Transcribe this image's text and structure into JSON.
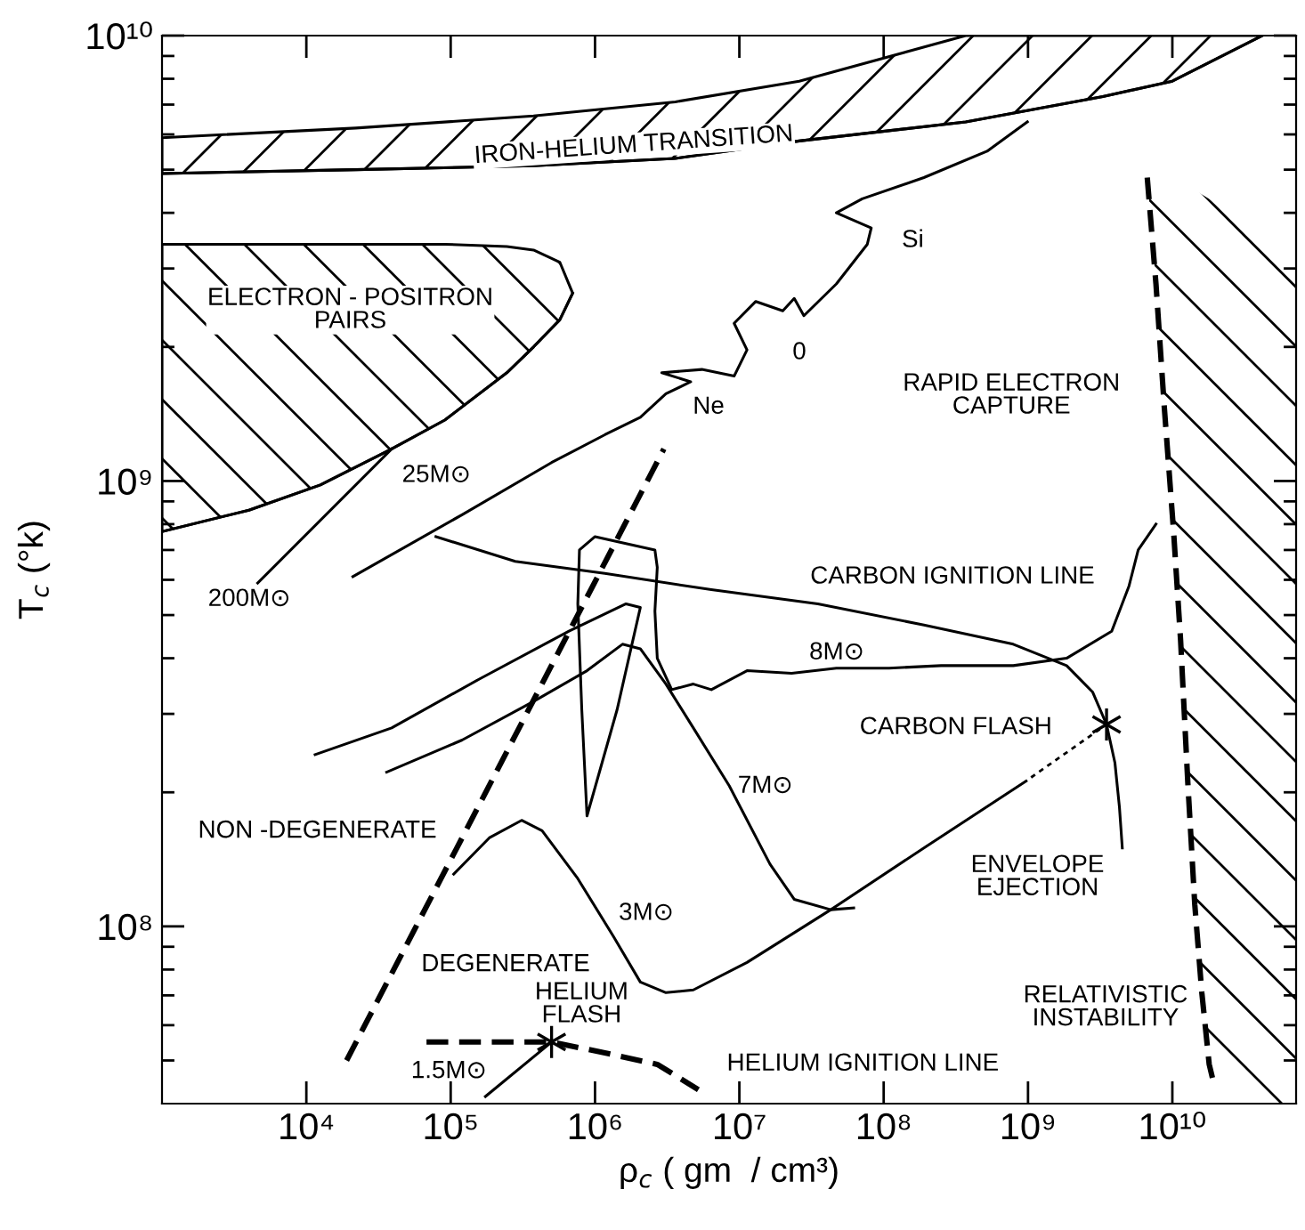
{
  "chart_data": {
    "type": "line",
    "log": "xy",
    "xlabel": "ρ$_{c}$ ( gm  / cm³)",
    "ylabel": "T$_{c}$ (°k)",
    "xlim": [
      1000,
      72000000000.0
    ],
    "ylim": [
      40000000.0,
      10000000000.0
    ],
    "xticks": [
      {
        "value": 10000.0,
        "label": "10⁴"
      },
      {
        "value": 100000.0,
        "label": "10⁵"
      },
      {
        "value": 1000000.0,
        "label": "10⁶"
      },
      {
        "value": 10000000.0,
        "label": "10⁷"
      },
      {
        "value": 100000000.0,
        "label": "10⁸"
      },
      {
        "value": 1000000000.0,
        "label": "10⁹"
      },
      {
        "value": 10000000000.0,
        "label": "10¹⁰"
      }
    ],
    "yticks": [
      {
        "value": 50000000.0,
        "label": null
      },
      {
        "value": 60000000.0,
        "label": null
      },
      {
        "value": 70000000.0,
        "label": null
      },
      {
        "value": 80000000.0,
        "label": null
      },
      {
        "value": 90000000.0,
        "label": null
      },
      {
        "value": 100000000.0,
        "label": "10⁸"
      },
      {
        "value": 200000000.0,
        "label": null
      },
      {
        "value": 300000000.0,
        "label": null
      },
      {
        "value": 400000000.0,
        "label": null
      },
      {
        "value": 500000000.0,
        "label": null
      },
      {
        "value": 600000000.0,
        "label": null
      },
      {
        "value": 700000000.0,
        "label": null
      },
      {
        "value": 800000000.0,
        "label": null
      },
      {
        "value": 900000000.0,
        "label": null
      },
      {
        "value": 1000000000.0,
        "label": "10⁹"
      },
      {
        "value": 2000000000.0,
        "label": null
      },
      {
        "value": 3000000000.0,
        "label": null
      },
      {
        "value": 4000000000.0,
        "label": null
      },
      {
        "value": 5000000000.0,
        "label": null
      },
      {
        "value": 6000000000.0,
        "label": null
      },
      {
        "value": 7000000000.0,
        "label": null
      },
      {
        "value": 8000000000.0,
        "label": null
      },
      {
        "value": 9000000000.0,
        "label": null
      },
      {
        "value": 10000000000.0,
        "label": "10¹⁰"
      }
    ],
    "series": [
      {
        "color": "#000000",
        "line_style": "solid",
        "x": [
          1000,
          22000.0,
          375000.0,
          3600000.0,
          26000000.0,
          370000000.0,
          3300000000.0,
          10000000000.0,
          42000000000.0
        ],
        "values": [
          4900000000.0,
          5000000000.0,
          5100000000.0,
          5300000000.0,
          5800000000.0,
          6400000000.0,
          7300000000.0,
          7900000000.0,
          10000000000.0
        ],
        "lower": [
          4900000000.0,
          5000000000.0,
          5100000000.0,
          5300000000.0,
          5800000000.0,
          6400000000.0,
          7300000000.0,
          7900000000.0,
          10000000000.0
        ],
        "upper": [
          5900000000.0,
          6200000000.0,
          6600000000.0,
          7100000000.0,
          7900000000.0,
          10000000000.0,
          10000000000.0,
          10000000000.0,
          10000000000.0
        ]
      },
      {
        "color": "#000000",
        "line_style": "solid",
        "x": [
          1000,
          4000.0,
          12500.0,
          39000.0,
          91000.0,
          245000.0,
          375000.0,
          570000.0,
          700000.0
        ],
        "values": [
          770000000.0,
          860000000.0,
          980000000.0,
          1180000000.0,
          1370000000.0,
          1750000000.0,
          2000000000.0,
          2300000000.0,
          2640000000.0
        ],
        "lower": [
          770000000.0,
          860000000.0,
          980000000.0,
          1180000000.0,
          1370000000.0,
          1750000000.0,
          2000000000.0,
          2300000000.0,
          2640000000.0
        ],
        "upper": [
          3400000000.0,
          3400000000.0,
          3400000000.0,
          3400000000.0,
          3400000000.0,
          3360000000.0,
          3300000000.0,
          3100000000.0,
          2640000000.0
        ]
      },
      {
        "color": "#000000",
        "line_style": "dashed",
        "x": [
          6700000000.0,
          7700000000.0,
          8800000000.0,
          10200000000.0,
          11400000000.0,
          12800000000.0,
          14300000000.0,
          16000000000.0,
          18000000000.0,
          19500000000.0,
          32000000000.0,
          72000000000.0
        ],
        "values": [
          4800000000.0,
          2770000000.0,
          1460000000.0,
          770000000.0,
          440000000.0,
          210000000.0,
          112000000.0,
          71000000.0,
          49000000.0,
          44000000.0,
          null,
          null
        ],
        "lower": [
          4800000000.0,
          2770000000.0,
          1460000000.0,
          770000000.0,
          440000000.0,
          210000000.0,
          112000000.0,
          71000000.0,
          49000000.0,
          44000000.0,
          40000000.0,
          40000000.0
        ],
        "upper": [
          5400000000.0,
          5200000000.0,
          5000000000.0,
          4900000000.0,
          4750000000.0,
          4600000000.0,
          4500000000.0,
          4400000000.0,
          4300000000.0,
          4200000000.0,
          3750000000.0,
          3100000000.0
        ]
      },
      {
        "color": "#000000",
        "line_style": "dashed",
        "x": [
          19000.0,
          3000000.0
        ],
        "values": [
          50000000.0,
          1180000000.0
        ]
      },
      {
        "color": "#000000",
        "line_style": "dashed",
        "x": [
          68000.0,
          500000.0,
          1170000.0,
          2700000.0,
          5200000.0
        ],
        "values": [
          55000000.0,
          55000000.0,
          52000000.0,
          49000000.0,
          43000000.0
        ]
      },
      {
        "color": "#000000",
        "x": [
          4600.0,
          39000.0
        ],
        "values": [
          590000000.0,
          1180000000.0
        ]
      },
      {
        "color": "#000000",
        "x": [
          21000.0,
          120000.0,
          500000.0,
          1170000.0,
          2060000.0,
          3100000.0,
          4600000.0,
          2900000.0,
          5500000.0,
          9200000.0,
          11300000.0,
          9200000.0,
          13000000.0,
          20000000.0,
          24000000.0,
          28000000.0,
          47000000.0,
          77000000.0,
          82000000.0,
          47000000.0,
          71000000.0,
          190000000.0,
          520000000.0,
          990000000.0
        ],
        "values": [
          610000000.0,
          840000000.0,
          1100000000.0,
          1270000000.0,
          1390000000.0,
          1570000000.0,
          1670000000.0,
          1750000000.0,
          1780000000.0,
          1720000000.0,
          1970000000.0,
          2260000000.0,
          2530000000.0,
          2410000000.0,
          2570000000.0,
          2350000000.0,
          2770000000.0,
          3400000000.0,
          3700000000.0,
          4000000000.0,
          4300000000.0,
          4800000000.0,
          5500000000.0,
          6400000000.0
        ]
      },
      {
        "color": "#000000",
        "x": [
          79000.0,
          280000.0,
          1170000.0,
          6400000.0,
          35000000.0,
          190000000.0,
          790000000.0,
          1850000000.0,
          2800000000.0,
          3500000000.0,
          4000000000.0,
          4300000000.0,
          4500000000.0
        ],
        "values": [
          750000000.0,
          660000000.0,
          620000000.0,
          570000000.0,
          530000000.0,
          475000000.0,
          430000000.0,
          385000000.0,
          336000000.0,
          284000000.0,
          233000000.0,
          185000000.0,
          150000000.0
        ]
      },
      {
        "color": "#000000",
        "x": [
          11500.0,
          39000.0,
          160000.0,
          660000.0,
          1640000.0,
          2060000.0,
          1420000.0,
          880000.0,
          810000.0,
          760000.0,
          780000.0,
          1000000.0,
          2600000.0,
          2700000.0,
          2600000.0,
          2700000.0,
          3400000.0,
          4800000.0,
          6400000.0,
          11300000.0,
          23000000.0,
          47000000.0,
          109000000.0,
          250000000.0,
          790000000.0,
          1850000000.0,
          3800000000.0,
          5000000000.0,
          5800000000.0,
          7700000000.0
        ],
        "values": [
          243000000.0,
          279000000.0,
          360000000.0,
          460000000.0,
          530000000.0,
          520000000.0,
          306000000.0,
          177000000.0,
          306000000.0,
          530000000.0,
          700000000.0,
          750000000.0,
          700000000.0,
          640000000.0,
          510000000.0,
          400000000.0,
          340000000.0,
          350000000.0,
          340000000.0,
          375000000.0,
          370000000.0,
          380000000.0,
          380000000.0,
          385000000.0,
          385000000.0,
          400000000.0,
          460000000.0,
          580000000.0,
          700000000.0,
          800000000.0
        ]
      },
      {
        "color": "#000000",
        "x": [
          36000.0,
          120000.0,
          375000.0,
          880000.0,
          1550000.0,
          2060000.0,
          3100000.0,
          4800000.0,
          8500000.0,
          16300000.0,
          24000000.0,
          43000000.0,
          62000000.0
        ],
        "values": [
          222000000.0,
          262000000.0,
          320000000.0,
          375000000.0,
          430000000.0,
          420000000.0,
          350000000.0,
          279000000.0,
          207000000.0,
          138000000.0,
          115000000.0,
          109000000.0,
          110000000.0
        ]
      },
      {
        "color": "#000000",
        "x": [
          105000.0,
          185000.0,
          310000.0,
          430000.0,
          760000.0,
          1340000.0,
          2060000.0,
          3100000.0,
          4800000.0,
          11300000.0,
          43000000.0,
          190000000.0,
          970000000.0
        ],
        "values": [
          131000000.0,
          158000000.0,
          173000000.0,
          164000000.0,
          128000000.0,
          95000000.0,
          75000000.0,
          71000000.0,
          72000000.0,
          83000000.0,
          109000000.0,
          150000000.0,
          212000000.0
        ]
      },
      {
        "color": "#000000",
        "line_style": "dotted",
        "x": [
          1050000000.0,
          3500000000.0
        ],
        "values": [
          216000000.0,
          284000000.0
        ]
      },
      {
        "color": "#000000",
        "x": [
          174000.0,
          500000.0
        ],
        "values": [
          41500000.0,
          55000000.0
        ]
      },
      {
        "type": "scatter",
        "color": "#000000",
        "marker": "cross",
        "x": [
          500000.0,
          3500000000.0
        ],
        "values": [
          55000000.0,
          284000000.0
        ]
      }
    ],
    "annotations": [
      "IRON-HELIUM TRANSITION",
      "ELECTRON - POSITRON\nPAIRS",
      "Si",
      "0",
      "Ne",
      "RAPID ELECTRON\nCAPTURE",
      "25M⊙",
      "200M⊙",
      "CARBON IGNITION LINE",
      "8M⊙",
      "CARBON FLASH",
      "7M⊙",
      "NON -DEGENERATE",
      "ENVELOPE\nEJECTION",
      "3M⊙",
      "DEGENERATE",
      "RELATIVISTIC\nINSTABILITY",
      "HELIUM\nFLASH",
      "HELIUM IGNITION LINE",
      "1.5M⊙"
    ]
  }
}
